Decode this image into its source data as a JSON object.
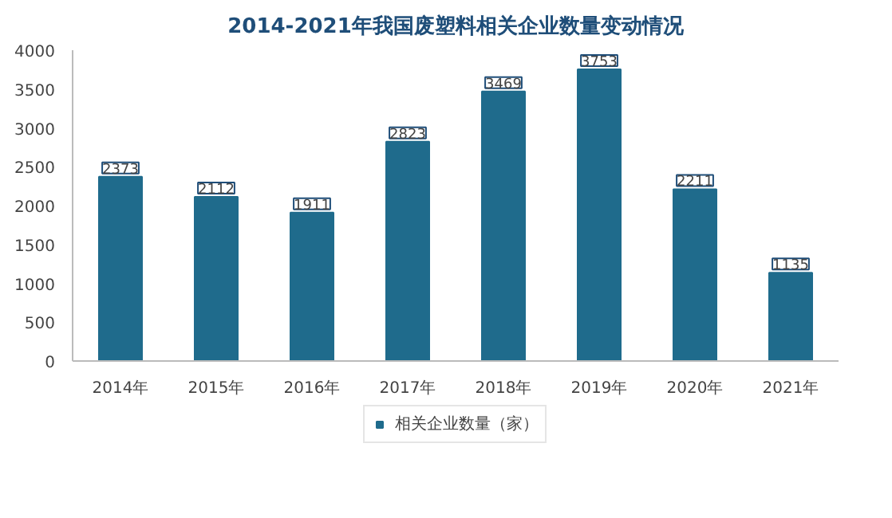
{
  "chart_data": {
    "type": "bar",
    "title": "2014-2021年我国废塑料相关企业数量变动情况",
    "categories": [
      "2014年",
      "2015年",
      "2016年",
      "2017年",
      "2018年",
      "2019年",
      "2020年",
      "2021年"
    ],
    "series": [
      {
        "name": "相关企业数量（家）",
        "color": "#1f6b8c",
        "values": [
          2373,
          2112,
          1911,
          2823,
          3469,
          3753,
          2211,
          1135
        ]
      }
    ],
    "ylim": [
      0,
      4000
    ],
    "yticks": [
      0,
      500,
      1000,
      1500,
      2000,
      2500,
      3000,
      3500,
      4000
    ],
    "data_labels": true,
    "grid": false,
    "legend": "bottom"
  }
}
